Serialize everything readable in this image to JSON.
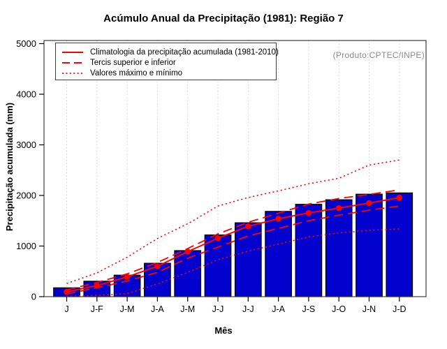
{
  "title": "Acúmulo Anual da Precipitação (1981): Região 7",
  "watermark": "(Produto:CPTEC/INPE)",
  "axes": {
    "x_title": "Mês",
    "y_title": "Precipitação acumulada (mm)"
  },
  "legend": {
    "items": [
      {
        "label": "Climatologia da precipitação acumulada (1981-2010)",
        "style": "solid"
      },
      {
        "label": "Tercis superior e inferior",
        "style": "dashed"
      },
      {
        "label": "Valores máximo e mínimo",
        "style": "dotted"
      }
    ]
  },
  "chart_data": {
    "type": "bar",
    "title": "Acúmulo Anual da Precipitação (1981): Região 7",
    "xlabel": "Mês",
    "ylabel": "Precipitação acumulada (mm)",
    "ylim": [
      0,
      5000
    ],
    "yticks": [
      0,
      1000,
      2000,
      3000,
      4000,
      5000
    ],
    "grid": "vertical-dotted",
    "legend_position": "top-left",
    "annotation": "(Produto:CPTEC/INPE)",
    "categories": [
      "J",
      "J-F",
      "J-M",
      "J-A",
      "J-M",
      "J-J",
      "J-J",
      "J-A",
      "J-S",
      "J-O",
      "J-N",
      "J-D"
    ],
    "bars": {
      "name": "Precipitação acumulada (1981)",
      "color": "#0202CE",
      "values": [
        175,
        305,
        425,
        660,
        910,
        1220,
        1460,
        1685,
        1825,
        1915,
        2025,
        2050
      ]
    },
    "series": [
      {
        "name": "Climatologia da precipitação acumulada (1981-2010)",
        "style": "solid",
        "marker": true,
        "values": [
          95,
          220,
          390,
          600,
          890,
          1155,
          1390,
          1540,
          1655,
          1750,
          1850,
          1955
        ]
      },
      {
        "name": "Tercil superior",
        "style": "dashed",
        "marker": false,
        "values": [
          135,
          280,
          450,
          675,
          950,
          1240,
          1470,
          1650,
          1830,
          1940,
          2020,
          2110
        ]
      },
      {
        "name": "Tercil inferior",
        "style": "dashed",
        "marker": false,
        "values": [
          55,
          175,
          310,
          480,
          760,
          980,
          1200,
          1350,
          1500,
          1610,
          1710,
          1790
        ]
      },
      {
        "name": "Valor máximo",
        "style": "dotted",
        "marker": false,
        "values": [
          260,
          470,
          780,
          1150,
          1440,
          1790,
          1960,
          2090,
          2230,
          2340,
          2600,
          2700
        ]
      },
      {
        "name": "Valor mínimo",
        "style": "dotted",
        "marker": false,
        "values": [
          10,
          25,
          60,
          250,
          480,
          730,
          900,
          1040,
          1180,
          1260,
          1310,
          1340
        ]
      }
    ],
    "accent_color": "#FF0000"
  }
}
